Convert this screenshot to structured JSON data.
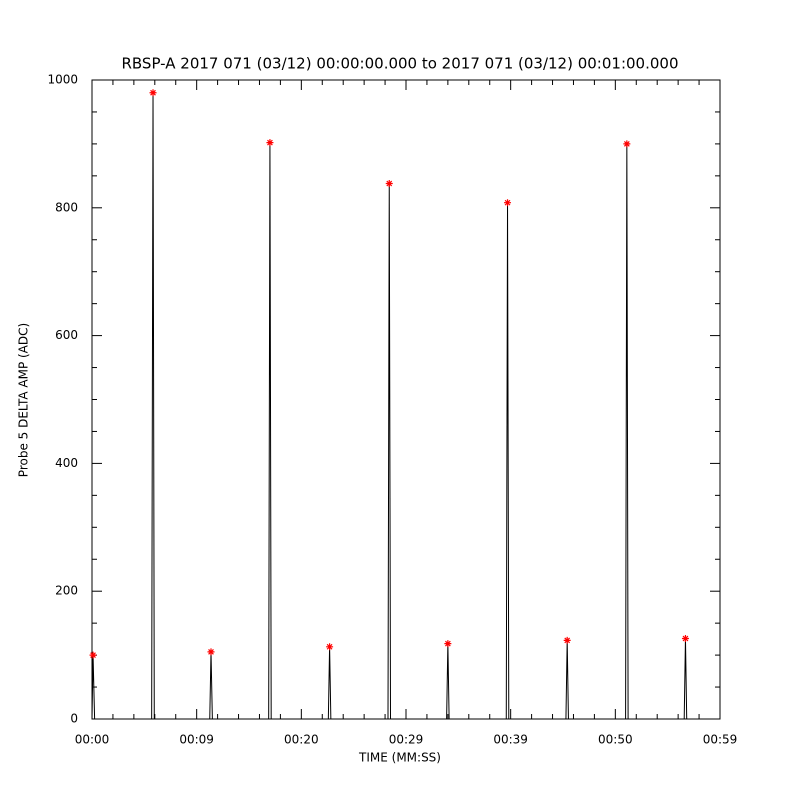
{
  "chart_data": {
    "type": "line",
    "title": "RBSP-A 2017 071 (03/12) 00:00:00.000 to 2017 071 (03/12) 00:01:00.000",
    "x_label": "TIME (MM:SS)",
    "y_label": "Probe 5 DELTA AMP (ADC)",
    "x": [
      0,
      0.1,
      0.25,
      5.7,
      5.83,
      5.95,
      11.25,
      11.37,
      11.5,
      16.88,
      17.0,
      17.12,
      22.58,
      22.7,
      22.82,
      28.28,
      28.4,
      28.52,
      33.88,
      34.0,
      34.12,
      39.58,
      39.7,
      39.82,
      45.28,
      45.4,
      45.52,
      50.98,
      51.1,
      51.22,
      56.58,
      56.7,
      56.82,
      58
    ],
    "series": [
      {
        "color": "#000000",
        "values": [
          0,
          100,
          0,
          0,
          980,
          0,
          0,
          105,
          0,
          0,
          902,
          0,
          0,
          113,
          0,
          0,
          838,
          0,
          0,
          118,
          0,
          0,
          808,
          0,
          0,
          123,
          0,
          0,
          900,
          0,
          0,
          126,
          0,
          0
        ]
      }
    ],
    "peaks": {
      "color": "#ff0000",
      "x": [
        0.1,
        5.83,
        11.37,
        17.0,
        22.7,
        28.4,
        34.0,
        39.7,
        45.4,
        51.1,
        56.7
      ],
      "values": [
        100,
        980,
        105,
        902,
        113,
        838,
        118,
        808,
        123,
        900,
        126
      ]
    },
    "xlim": [
      0,
      60
    ],
    "xticks": [
      {
        "value": 0,
        "label": "00:00"
      },
      {
        "value": 10,
        "label": "00:09"
      },
      {
        "value": 20,
        "label": "00:20"
      },
      {
        "value": 30,
        "label": "00:29"
      },
      {
        "value": 40,
        "label": "00:39"
      },
      {
        "value": 50,
        "label": "00:50"
      },
      {
        "value": 60,
        "label": "00:59"
      }
    ],
    "ylim": [
      0,
      1000
    ],
    "yticks": [
      0,
      200,
      400,
      600,
      800,
      1000
    ]
  }
}
